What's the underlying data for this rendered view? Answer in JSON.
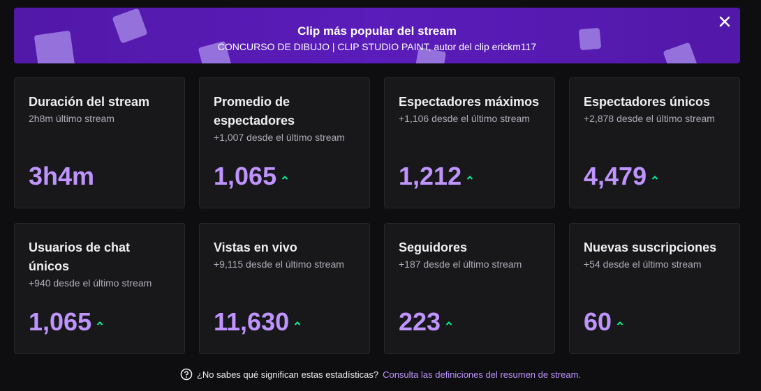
{
  "banner": {
    "title": "Clip más popular del stream",
    "subtitle": "CONCURSO DE DIBUJO | CLIP STUDIO PAINT, autor del clip erickm117"
  },
  "cards": [
    {
      "title": "Duración del stream",
      "subtitle": "2h8m último stream",
      "value": "3h4m"
    },
    {
      "title": "Promedio de espectadores",
      "subtitle": "+1,007 desde el último stream",
      "value": "1,065",
      "trend": "up"
    },
    {
      "title": "Espectadores máximos",
      "subtitle": "+1,106 desde el último stream",
      "value": "1,212",
      "trend": "up"
    },
    {
      "title": "Espectadores únicos",
      "subtitle": "+2,878 desde el último stream",
      "value": "4,479",
      "trend": "up"
    },
    {
      "title": "Usuarios de chat únicos",
      "subtitle": "+940 desde el último stream",
      "value": "1,065",
      "trend": "up"
    },
    {
      "title": "Vistas en vivo",
      "subtitle": "+9,115 desde el último stream",
      "value": "11,630",
      "trend": "up"
    },
    {
      "title": "Seguidores",
      "subtitle": "+187 desde el último stream",
      "value": "223",
      "trend": "up"
    },
    {
      "title": "Nuevas suscripciones",
      "subtitle": "+54 desde el último stream",
      "value": "60",
      "trend": "up"
    }
  ],
  "footer": {
    "question": "¿No sabes qué significan estas estadísticas?",
    "link": "Consulta las definiciones del resumen de stream."
  }
}
